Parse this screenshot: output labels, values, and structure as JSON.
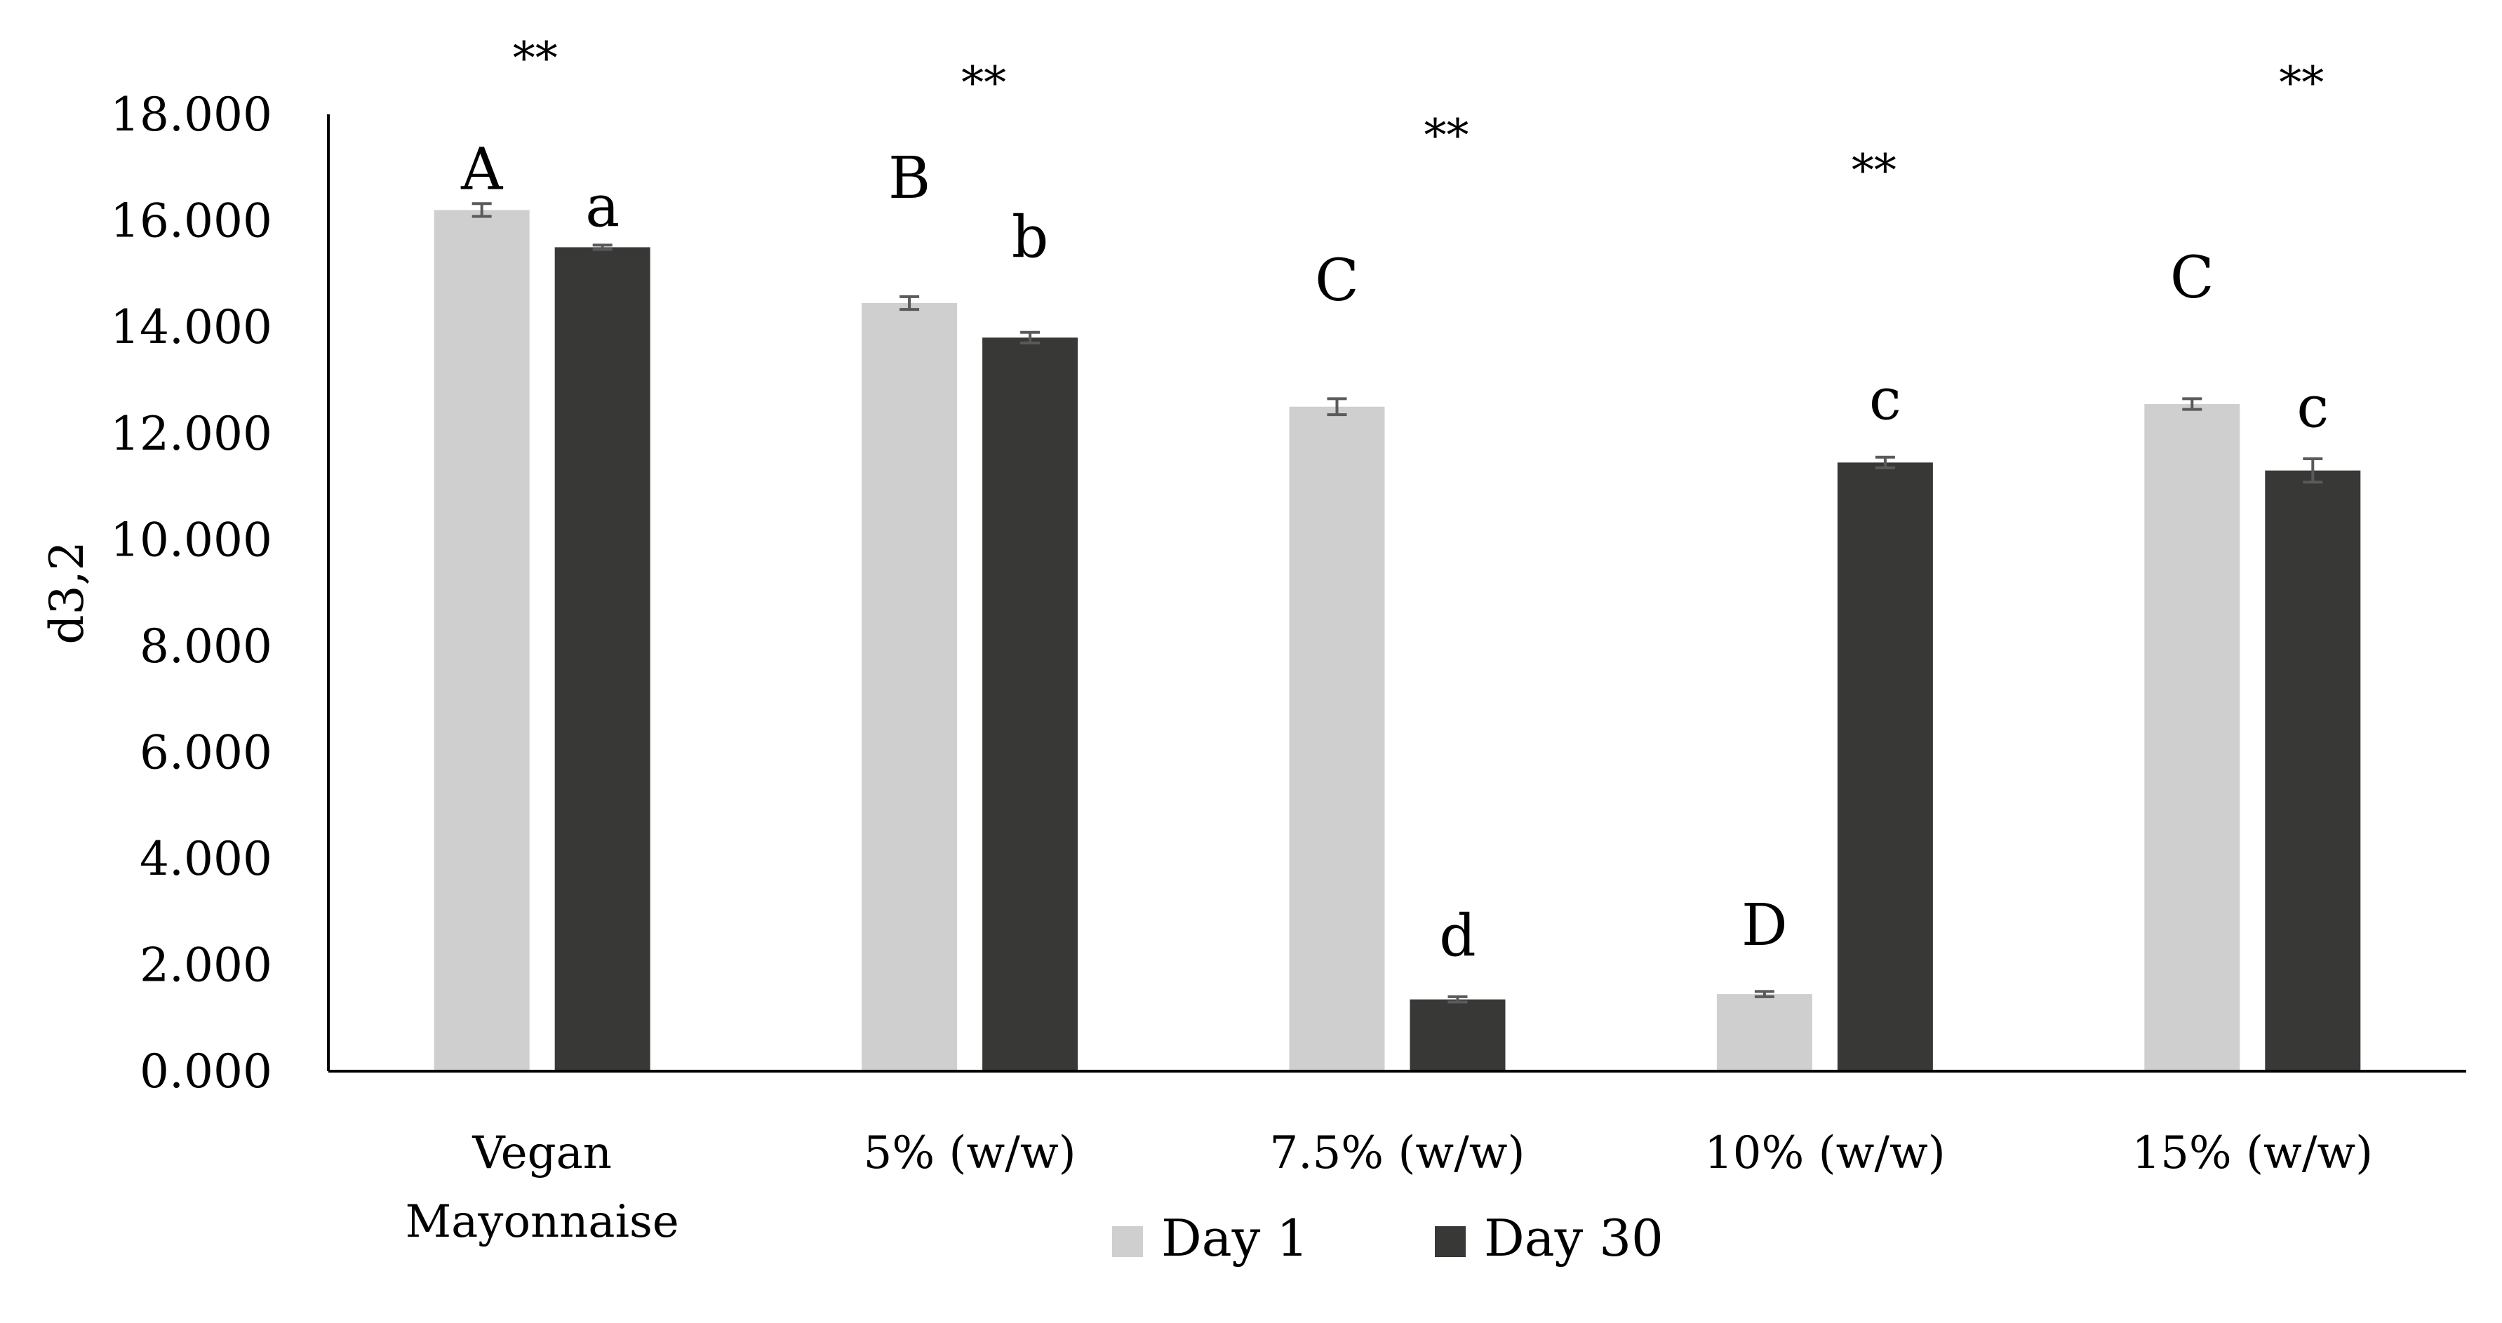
{
  "chart_data": {
    "type": "bar",
    "title": "",
    "xlabel": "",
    "ylabel": "d3,2",
    "ylim": [
      0,
      18
    ],
    "yticks": [
      0,
      2,
      4,
      6,
      8,
      10,
      12,
      14,
      16,
      18
    ],
    "ytick_labels": [
      "0.000",
      "2.000",
      "4.000",
      "6.000",
      "8.000",
      "10.000",
      "12.000",
      "14.000",
      "16.000",
      "18.000"
    ],
    "grid": false,
    "legend_position": "bottom",
    "categories": [
      [
        "Vegan",
        "Mayonnaise"
      ],
      [
        "5% (w/w)"
      ],
      [
        "7.5% (w/w)"
      ],
      [
        "10% (w/w)"
      ],
      [
        "15% (w/w)"
      ]
    ],
    "series": [
      {
        "name": "Day 1",
        "color": "#d0cfcf",
        "values": [
          16.2,
          14.45,
          12.5,
          1.45,
          12.55
        ],
        "errors": [
          0.12,
          0.12,
          0.15,
          0.05,
          0.1
        ],
        "labels": [
          "A",
          "B",
          "C",
          "D",
          "C"
        ]
      },
      {
        "name": "Day 30",
        "color": "#383837",
        "values": [
          15.5,
          13.8,
          1.35,
          11.45,
          11.3
        ],
        "errors": [
          0.04,
          0.1,
          0.05,
          0.1,
          0.22
        ],
        "labels": [
          "a",
          "b",
          "d",
          "c",
          "c"
        ]
      }
    ],
    "significance": [
      "**",
      "**",
      "**",
      "**",
      "**"
    ],
    "error_bar_color": "#5a5a5a"
  }
}
